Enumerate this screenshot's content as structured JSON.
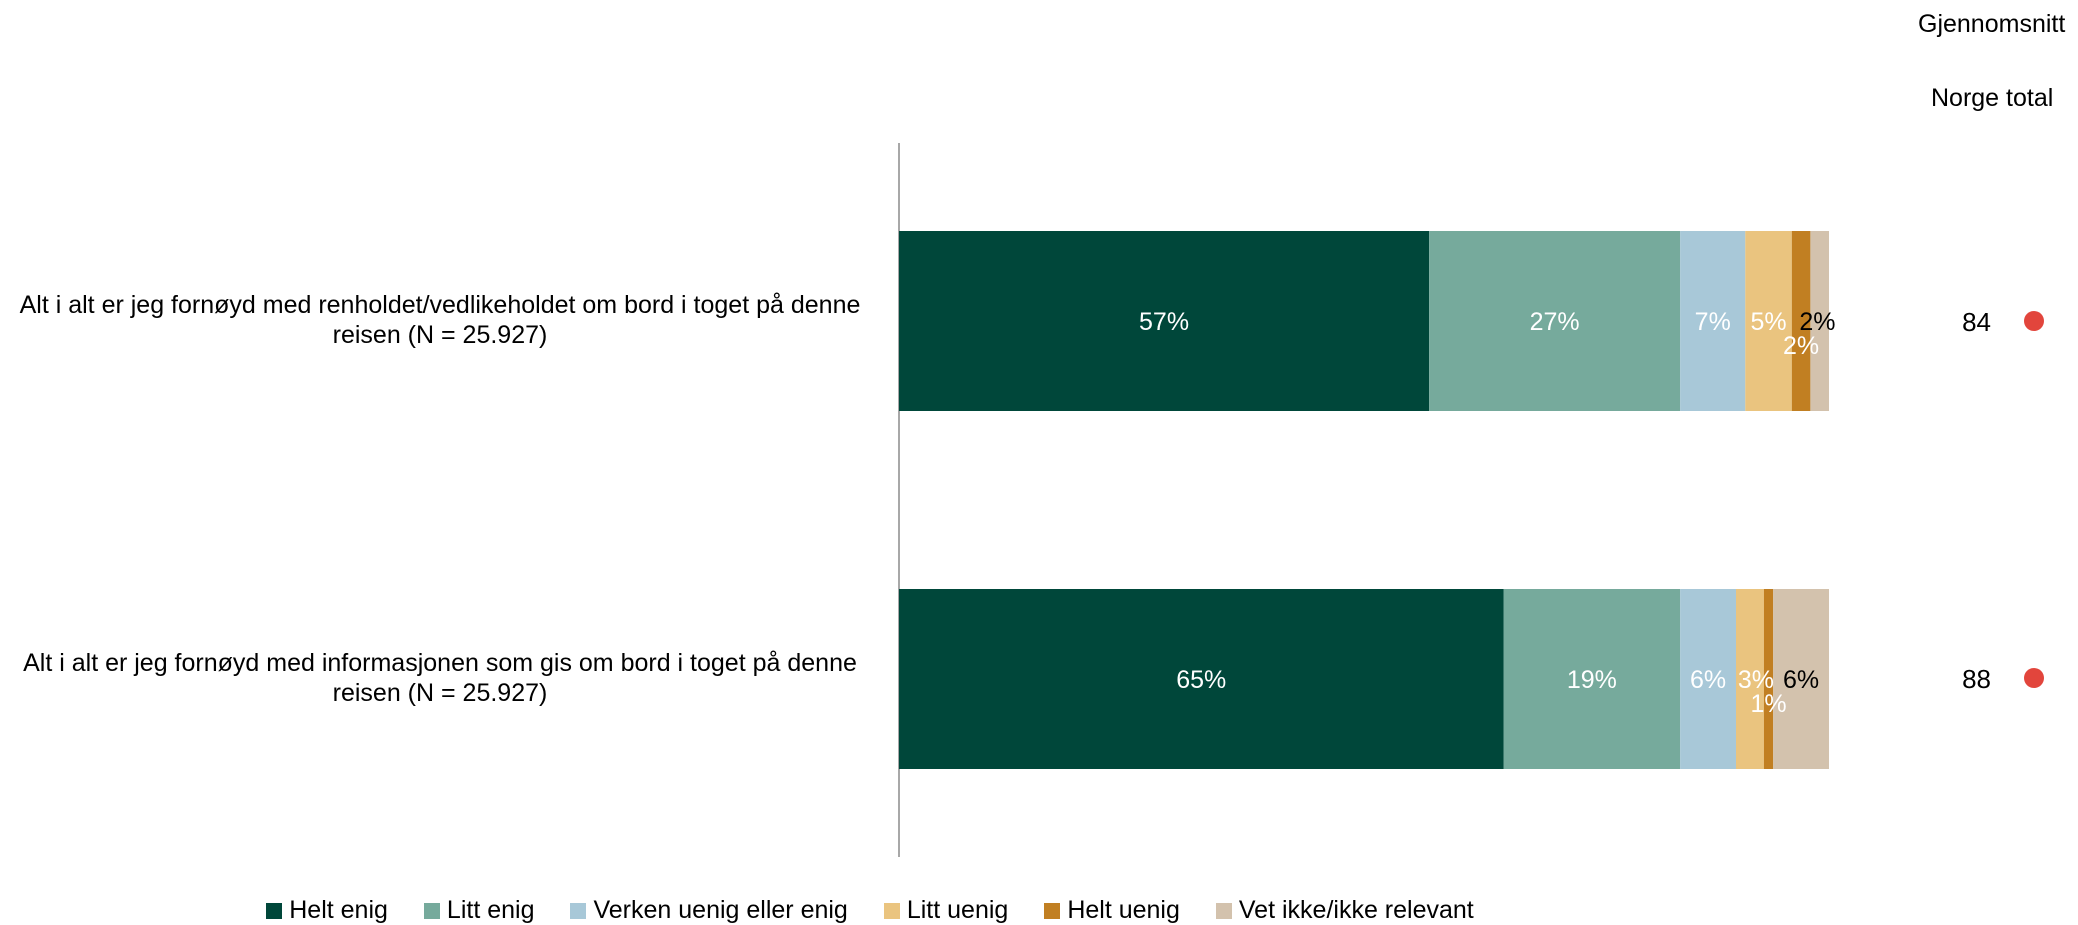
{
  "header": {
    "col_title": "Gjennomsnitt",
    "col_subtitle": "Norge total"
  },
  "colors": {
    "helt_enig": "#00473A",
    "litt_enig": "#76AA9C",
    "verken": "#A8C8D8",
    "litt_uenig": "#EAC47F",
    "helt_uenig": "#C17F22",
    "vet_ikke": "#D3C2AD",
    "dot": "#E2453C"
  },
  "chart_data": {
    "type": "bar",
    "orientation": "horizontal-stacked",
    "categories": [
      "Alt i alt er jeg fornøyd med renholdet/vedlikeholdet om bord i toget på denne reisen (N = 25.927)",
      "Alt i alt er jeg fornøyd med informasjonen som gis om bord i toget på denne reisen (N = 25.927)"
    ],
    "series": [
      {
        "name": "Helt enig",
        "values": [
          57,
          65
        ],
        "labels": [
          "57%",
          "65%"
        ]
      },
      {
        "name": "Litt enig",
        "values": [
          27,
          19
        ],
        "labels": [
          "27%",
          "19%"
        ]
      },
      {
        "name": "Verken uenig eller enig",
        "values": [
          7,
          6
        ],
        "labels": [
          "7%",
          "6%"
        ]
      },
      {
        "name": "Litt uenig",
        "values": [
          5,
          3
        ],
        "labels": [
          "5%",
          "3%"
        ]
      },
      {
        "name": "Helt uenig",
        "values": [
          2,
          1
        ],
        "labels": [
          "2%",
          "1%"
        ]
      },
      {
        "name": "Vet ikke/ikke relevant",
        "values": [
          2,
          6
        ],
        "labels": [
          "2%",
          "6%"
        ]
      }
    ],
    "averages": [
      84,
      88
    ],
    "legend_position": "bottom"
  }
}
